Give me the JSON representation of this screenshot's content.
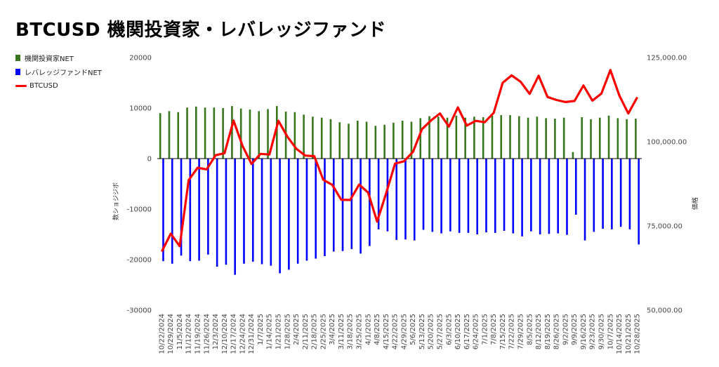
{
  "title": "BTCUSD  機関投資家・レバレッジファンド",
  "colors": {
    "institutional": "#38761d",
    "leveraged": "#0000ff",
    "btc": "#ff0000",
    "gridline": "#000000"
  },
  "chart_data": {
    "type": "bar",
    "title": "BTCUSD  機関投資家・レバレッジファンド",
    "legend_position": "left",
    "ylabel": "数ショジジボ",
    "y2label": "価格",
    "ylim": [
      -30000,
      20000
    ],
    "y2lim": [
      50000,
      125000
    ],
    "yticks": [
      "20000",
      "10000",
      "0",
      "-10000",
      "-20000",
      "-30000"
    ],
    "y2ticks": [
      "125,000.00",
      "100,000.00",
      "75,000.00",
      "50,000.00"
    ],
    "categories": [
      "10/22/2024",
      "10/29/2024",
      "11/5/2024",
      "11/12/2024",
      "11/19/2024",
      "11/26/2024",
      "12/3/2024",
      "12/10/2024",
      "12/17/2024",
      "12/24/2024",
      "12/31/2024",
      "1/7/2025",
      "1/14/2025",
      "1/21/2025",
      "1/28/2025",
      "2/4/2025",
      "2/11/2025",
      "2/18/2025",
      "2/25/2025",
      "3/4/2025",
      "3/11/2025",
      "3/18/2025",
      "3/25/2025",
      "4/1/2025",
      "4/8/2025",
      "4/15/2025",
      "4/22/2025",
      "4/29/2025",
      "5/6/2025",
      "5/13/2025",
      "5/20/2025",
      "5/27/2025",
      "6/3/2025",
      "6/10/2025",
      "6/17/2025",
      "6/24/2025",
      "7/1/2025",
      "7/8/2025",
      "7/15/2025",
      "7/22/2025",
      "7/29/2025",
      "8/5/2025",
      "8/12/2025",
      "8/19/2025",
      "8/26/2025",
      "9/2/2025",
      "9/9/2025",
      "9/16/2025",
      "9/23/2025",
      "9/30/2025",
      "10/7/2025",
      "10/14/2025",
      "10/21/2025",
      "10/28/2025"
    ],
    "series": [
      {
        "name": "機関投資家NET",
        "type": "bar",
        "axis": "left",
        "values": [
          9000,
          9400,
          9200,
          10100,
          10300,
          10100,
          10100,
          10000,
          10400,
          9900,
          9700,
          9400,
          9800,
          10400,
          9300,
          9200,
          8700,
          8300,
          8100,
          7800,
          7200,
          6900,
          7500,
          7300,
          6500,
          6700,
          7100,
          7500,
          7300,
          8000,
          8400,
          8300,
          8100,
          8500,
          8100,
          8300,
          8200,
          8500,
          8600,
          8600,
          8400,
          8100,
          8300,
          8000,
          7900,
          8100,
          1300,
          8200,
          7800,
          8100,
          8500,
          8000,
          7800,
          7900
        ]
      },
      {
        "name": "レバレッジファンドNET",
        "type": "bar",
        "axis": "left",
        "values": [
          -20300,
          -20800,
          -19200,
          -20300,
          -20200,
          -19000,
          -21400,
          -21000,
          -23000,
          -20800,
          -20400,
          -20900,
          -21200,
          -22700,
          -22000,
          -20800,
          -20200,
          -19800,
          -19300,
          -18400,
          -18300,
          -17900,
          -18800,
          -17300,
          -14000,
          -14400,
          -16100,
          -16000,
          -16200,
          -14100,
          -14500,
          -14800,
          -14400,
          -14700,
          -14700,
          -15000,
          -14600,
          -14700,
          -14300,
          -14800,
          -15400,
          -14400,
          -15000,
          -14900,
          -14800,
          -15100,
          -11100,
          -16200,
          -14500,
          -13900,
          -14000,
          -13500,
          -14000,
          -17000
        ]
      },
      {
        "name": "BTCUSD",
        "type": "line",
        "axis": "right",
        "values": [
          67400,
          72700,
          69000,
          88600,
          92300,
          91800,
          96000,
          96600,
          106300,
          98800,
          93400,
          96400,
          96200,
          106200,
          101500,
          97900,
          95900,
          95700,
          88700,
          87200,
          82800,
          82700,
          87300,
          84900,
          76300,
          84600,
          93500,
          94200,
          97000,
          103700,
          106300,
          108400,
          104500,
          110200,
          104800,
          106200,
          105800,
          108600,
          117500,
          119700,
          117800,
          114200,
          119600,
          113300,
          112400,
          111800,
          112100,
          116700,
          112200,
          114300,
          121300,
          113700,
          108400,
          113200
        ]
      }
    ]
  }
}
